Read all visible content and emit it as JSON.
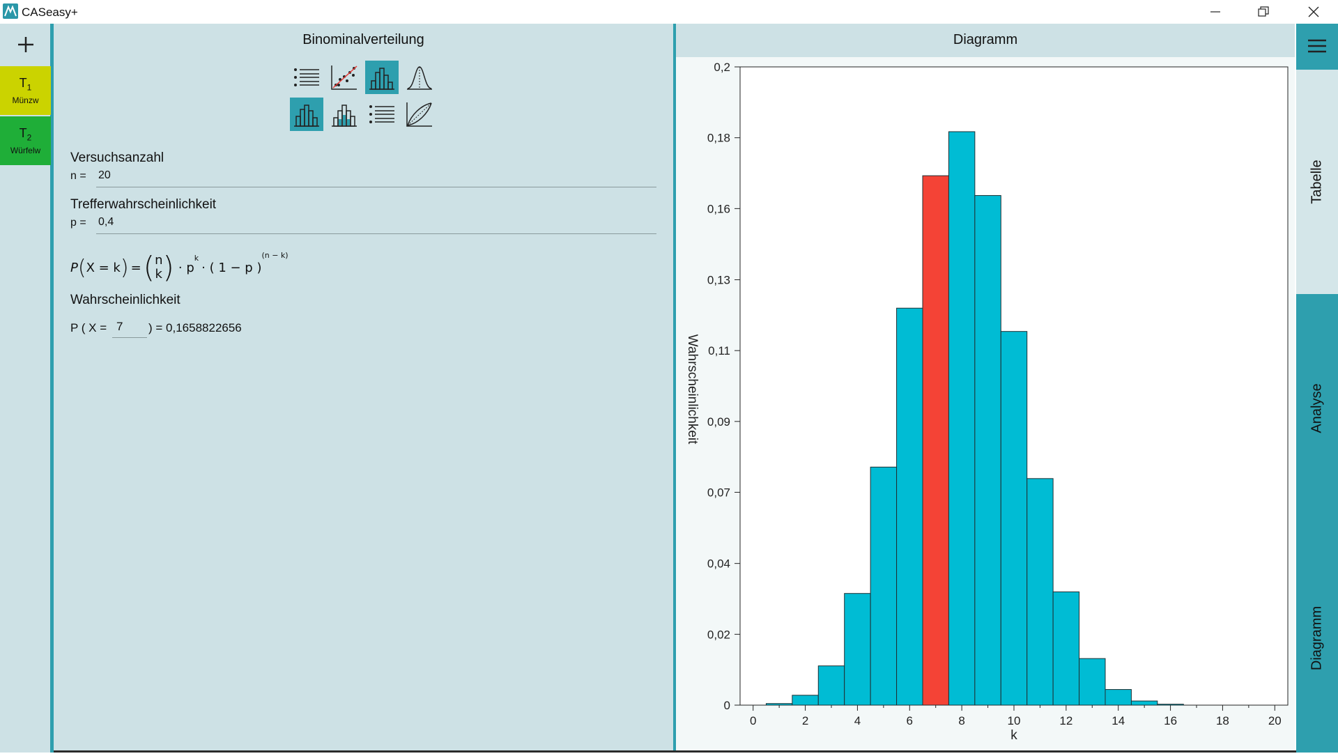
{
  "app": {
    "title": "CASeasy+"
  },
  "window": {
    "minimize_icon": "minimize-icon",
    "restore_icon": "restore-icon",
    "close_icon": "close-icon"
  },
  "leftbar": {
    "add_icon": "plus-icon",
    "tabs": [
      {
        "title": "T",
        "sub": "1",
        "label": "Münzw",
        "color": "#cbd300"
      },
      {
        "title": "T",
        "sub": "2",
        "label": "Würfelw",
        "color": "#1fae38"
      }
    ]
  },
  "panel": {
    "title": "Binominalverteilung",
    "tools_row1": [
      "list-icon",
      "scatter-regression-icon",
      "histogram-icon",
      "bell-curve-icon"
    ],
    "tools_row2": [
      "histogram-icon",
      "cumulative-histogram-icon",
      "list-icon",
      "lorenz-curve-icon"
    ],
    "versuchsanzahl": {
      "label": "Versuchsanzahl",
      "var": "n =",
      "value": "20"
    },
    "treffer": {
      "label": "Trefferwahrscheinlichkeit",
      "var": "p =",
      "value": "0,4"
    },
    "formula": {
      "lhs": "P",
      "inner": "X = k",
      "eq": "=",
      "binom_top": "n",
      "binom_bottom": "k",
      "rest1": "· p",
      "exp_k": "k",
      "rest2": "· ( 1 − p )",
      "exp_nk": "(n − k)"
    },
    "wahrscheinlichkeit": {
      "label": "Wahrscheinlichkeit",
      "prefix": "P ( X =",
      "k_value": "7",
      "suffix": ") = 0,1658822656"
    }
  },
  "diagram": {
    "title": "Diagramm"
  },
  "sidebar": {
    "tabs": [
      "Tabelle",
      "Analyse",
      "Diagramm"
    ],
    "menu_icon": "hamburger-menu-icon"
  },
  "chart_data": {
    "type": "bar",
    "xlabel": "k",
    "ylabel": "Wahrscheinlichkeit",
    "x": [
      0,
      1,
      2,
      3,
      4,
      5,
      6,
      7,
      8,
      9,
      10,
      11,
      12,
      13,
      14,
      15,
      16,
      17,
      18,
      19,
      20
    ],
    "values": [
      4e-05,
      0.0005,
      0.0031,
      0.0123,
      0.035,
      0.0746,
      0.1244,
      0.1659,
      0.1797,
      0.1597,
      0.1171,
      0.071,
      0.0355,
      0.0146,
      0.0049,
      0.0013,
      0.0003,
      4e-05,
      5e-06,
      4e-07,
      1e-08
    ],
    "highlight_k": 7,
    "bar_color": "#00bcd4",
    "highlight_color": "#f44336",
    "xlim": [
      -0.5,
      20.5
    ],
    "ylim": [
      0,
      0.2
    ],
    "x_ticks": [
      0,
      2,
      4,
      6,
      8,
      10,
      12,
      14,
      16,
      18,
      20
    ],
    "y_ticks": [
      {
        "v": 0,
        "label": "0"
      },
      {
        "v": 0.0222,
        "label": "0,02"
      },
      {
        "v": 0.0444,
        "label": "0,04"
      },
      {
        "v": 0.0667,
        "label": "0,07"
      },
      {
        "v": 0.0889,
        "label": "0,09"
      },
      {
        "v": 0.1111,
        "label": "0,11"
      },
      {
        "v": 0.1333,
        "label": "0,13"
      },
      {
        "v": 0.1556,
        "label": "0,16"
      },
      {
        "v": 0.1778,
        "label": "0,18"
      },
      {
        "v": 0.2,
        "label": "0,2"
      }
    ]
  }
}
